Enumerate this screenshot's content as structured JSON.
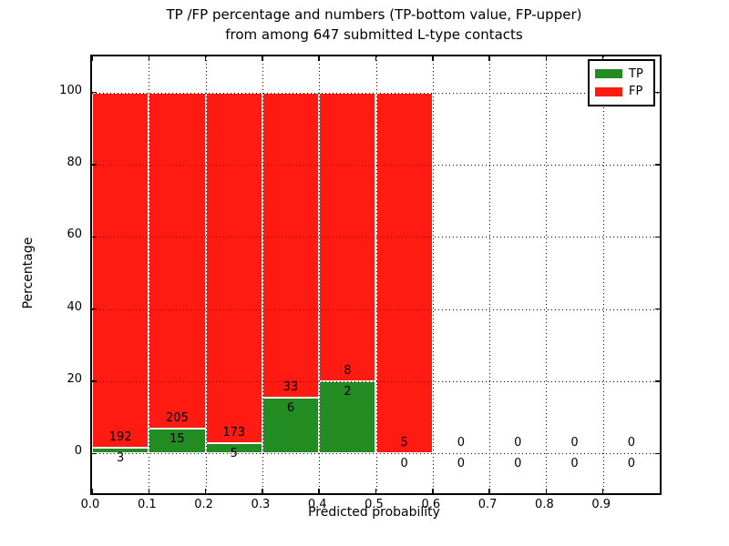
{
  "figure": {
    "title_line1": "TP /FP percentage and numbers (TP-bottom value, FP-upper)",
    "title_line2": "from among 647 submitted L-type contacts"
  },
  "chart_data": {
    "type": "bar",
    "subtype": "stacked-percentage-histogram",
    "title": "TP /FP percentage and numbers (TP-bottom value, FP-upper)\nfrom among 647 submitted L-type contacts",
    "xlabel": "Predicted probability",
    "ylabel": "Percentage",
    "total_contacts": 647,
    "bin_width": 0.1,
    "bin_starts": [
      0.0,
      0.1,
      0.2,
      0.3,
      0.4,
      0.5,
      0.6,
      0.7,
      0.8,
      0.9
    ],
    "series": [
      {
        "name": "TP",
        "color": "#228b22",
        "counts": [
          3,
          15,
          5,
          6,
          2,
          0,
          0,
          0,
          0,
          0
        ]
      },
      {
        "name": "FP",
        "color": "#ff1a12",
        "counts": [
          192,
          205,
          173,
          33,
          8,
          5,
          0,
          0,
          0,
          0
        ]
      }
    ],
    "tp_percent_per_bin": [
      1.54,
      6.82,
      2.81,
      15.38,
      20.0,
      0.0,
      null,
      null,
      null,
      null
    ],
    "bar_total_percent": 100,
    "x_tick_labels": [
      "0.0",
      "0.1",
      "0.2",
      "0.3",
      "0.4",
      "0.5",
      "0.6",
      "0.7",
      "0.8",
      "0.9"
    ],
    "y_tick_values": [
      0,
      20,
      40,
      60,
      80,
      100
    ],
    "xlim": [
      0,
      1.0
    ],
    "ylim": [
      -11,
      110
    ],
    "grid": "dotted-black-over-bars",
    "bar_edge_color": "#ffffff",
    "legend": {
      "position": "upper right",
      "entries": [
        {
          "label": "TP",
          "color": "#228b22"
        },
        {
          "label": "FP",
          "color": "#ff1a12"
        }
      ]
    }
  }
}
